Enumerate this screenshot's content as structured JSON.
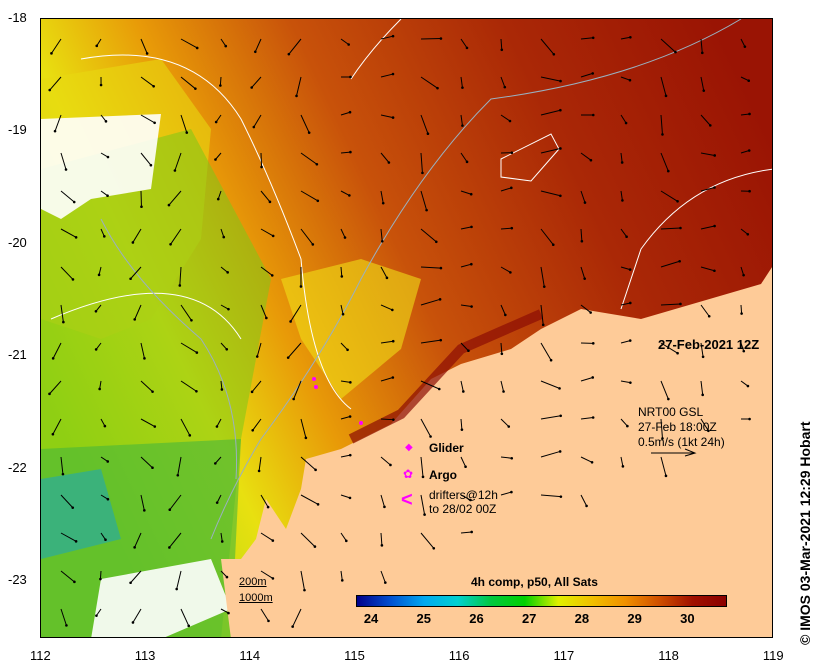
{
  "map": {
    "title_date": "27-Feb-2021 12Z",
    "lon_ticks": [
      "112",
      "113",
      "114",
      "115",
      "116",
      "117",
      "118",
      "119"
    ],
    "lat_ticks": [
      "-18",
      "-19",
      "-20",
      "-21",
      "-22",
      "-23"
    ],
    "current_legend": {
      "line1": "NRT00 GSL",
      "line2": "27-Feb 18:00Z",
      "line3": "0.5m/s (1kt 24h)"
    },
    "legend": {
      "glider": "Glider",
      "argo": "Argo",
      "drifters_1": "drifters@12h",
      "drifters_2": "to 28/02 00Z"
    },
    "isobaths": {
      "a": "200m",
      "b": "1000m"
    },
    "colorbar": {
      "title": "4h comp, p50, All Sats",
      "labels": [
        "24",
        "25",
        "26",
        "27",
        "28",
        "29",
        "30"
      ],
      "range": [
        23.7,
        30.7
      ]
    },
    "credit": "© IMOS 03-Mar-2021 12:29 Hobart",
    "colors": {
      "land": "#fecb98",
      "glider": "#ff00ff"
    }
  }
}
